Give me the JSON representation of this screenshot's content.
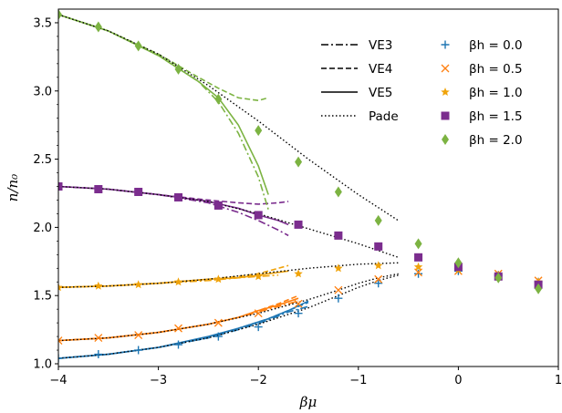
{
  "chart_data": {
    "type": "scatter",
    "title": "",
    "xlabel": "βμ",
    "ylabel": "n/n₀",
    "xlim": [
      -4,
      1
    ],
    "ylim": [
      0.98,
      3.6
    ],
    "xticks": [
      -4,
      -3,
      -2,
      -1,
      0,
      1
    ],
    "xtick_labels": [
      "−4",
      "−3",
      "−2",
      "−1",
      "0",
      "1"
    ],
    "yticks": [
      1.0,
      1.5,
      2.0,
      2.5,
      3.0,
      3.5
    ],
    "ytick_labels": [
      "1.0",
      "1.5",
      "2.0",
      "2.5",
      "3.0",
      "3.5"
    ],
    "grid": false,
    "legend_lines": [
      {
        "label": "VE3",
        "style": "dashdot"
      },
      {
        "label": "VE4",
        "style": "dashed"
      },
      {
        "label": "VE5",
        "style": "solid"
      },
      {
        "label": "Pade",
        "style": "dotted"
      }
    ],
    "series": [
      {
        "name": "βh = 0.0",
        "marker": "plus",
        "color": "#1f77b4",
        "points": [
          [
            -4,
            1.04
          ],
          [
            -3.6,
            1.07
          ],
          [
            -3.2,
            1.1
          ],
          [
            -2.8,
            1.14
          ],
          [
            -2.4,
            1.2
          ],
          [
            -2,
            1.27
          ],
          [
            -1.6,
            1.37
          ],
          [
            -1.2,
            1.48
          ],
          [
            -0.8,
            1.59
          ],
          [
            -0.4,
            1.66
          ],
          [
            0,
            1.68
          ],
          [
            0.4,
            1.65
          ],
          [
            0.8,
            1.6
          ]
        ],
        "curves": {
          "VE3": [
            [
              -4,
              1.04
            ],
            [
              -3.5,
              1.07
            ],
            [
              -3,
              1.12
            ],
            [
              -2.5,
              1.19
            ],
            [
              -2.2,
              1.25
            ],
            [
              -1.9,
              1.32
            ],
            [
              -1.7,
              1.38
            ],
            [
              -1.5,
              1.42
            ]
          ],
          "VE4": [
            [
              -4,
              1.04
            ],
            [
              -3.5,
              1.07
            ],
            [
              -3,
              1.12
            ],
            [
              -2.5,
              1.19
            ],
            [
              -2.2,
              1.26
            ],
            [
              -1.9,
              1.33
            ],
            [
              -1.7,
              1.39
            ],
            [
              -1.5,
              1.45
            ]
          ],
          "VE5": [
            [
              -4,
              1.04
            ],
            [
              -3.5,
              1.07
            ],
            [
              -3,
              1.12
            ],
            [
              -2.5,
              1.2
            ],
            [
              -2.2,
              1.26
            ],
            [
              -1.9,
              1.33
            ],
            [
              -1.7,
              1.39
            ],
            [
              -1.5,
              1.46
            ]
          ],
          "Pade": [
            [
              -4,
              1.04
            ],
            [
              -3.5,
              1.07
            ],
            [
              -3,
              1.12
            ],
            [
              -2.5,
              1.19
            ],
            [
              -2,
              1.29
            ],
            [
              -1.5,
              1.41
            ],
            [
              -1.2,
              1.5
            ],
            [
              -1,
              1.56
            ],
            [
              -0.8,
              1.61
            ],
            [
              -0.6,
              1.65
            ]
          ]
        }
      },
      {
        "name": "βh = 0.5",
        "marker": "x",
        "color": "#ff7f0e",
        "points": [
          [
            -4,
            1.17
          ],
          [
            -3.6,
            1.19
          ],
          [
            -3.2,
            1.21
          ],
          [
            -2.8,
            1.26
          ],
          [
            -2.4,
            1.3
          ],
          [
            -2,
            1.37
          ],
          [
            -1.6,
            1.44
          ],
          [
            -1.2,
            1.54
          ],
          [
            -0.8,
            1.62
          ],
          [
            -0.4,
            1.67
          ],
          [
            0,
            1.68
          ],
          [
            0.4,
            1.66
          ],
          [
            0.8,
            1.61
          ]
        ],
        "curves": {
          "VE3": [
            [
              -4,
              1.17
            ],
            [
              -3.5,
              1.19
            ],
            [
              -3,
              1.23
            ],
            [
              -2.5,
              1.29
            ],
            [
              -2.2,
              1.34
            ],
            [
              -2,
              1.38
            ],
            [
              -1.8,
              1.42
            ],
            [
              -1.6,
              1.46
            ]
          ],
          "VE4": [
            [
              -4,
              1.17
            ],
            [
              -3.5,
              1.19
            ],
            [
              -3,
              1.23
            ],
            [
              -2.5,
              1.29
            ],
            [
              -2.2,
              1.34
            ],
            [
              -2,
              1.39
            ],
            [
              -1.8,
              1.44
            ],
            [
              -1.6,
              1.5
            ]
          ],
          "VE5": [
            [
              -4,
              1.17
            ],
            [
              -3.5,
              1.19
            ],
            [
              -3,
              1.23
            ],
            [
              -2.5,
              1.29
            ],
            [
              -2.2,
              1.34
            ],
            [
              -2,
              1.39
            ],
            [
              -1.8,
              1.43
            ],
            [
              -1.6,
              1.48
            ]
          ],
          "Pade": [
            [
              -4,
              1.17
            ],
            [
              -3.5,
              1.19
            ],
            [
              -3,
              1.23
            ],
            [
              -2.5,
              1.29
            ],
            [
              -2,
              1.37
            ],
            [
              -1.5,
              1.47
            ],
            [
              -1.2,
              1.54
            ],
            [
              -1,
              1.59
            ],
            [
              -0.8,
              1.63
            ],
            [
              -0.6,
              1.66
            ]
          ]
        }
      },
      {
        "name": "βh = 1.0",
        "marker": "star",
        "color": "#f0a30a",
        "points": [
          [
            -4,
            1.56
          ],
          [
            -3.6,
            1.57
          ],
          [
            -3.2,
            1.58
          ],
          [
            -2.8,
            1.6
          ],
          [
            -2.4,
            1.62
          ],
          [
            -2,
            1.64
          ],
          [
            -1.6,
            1.66
          ],
          [
            -1.2,
            1.7
          ],
          [
            -0.8,
            1.72
          ],
          [
            -0.4,
            1.71
          ],
          [
            0,
            1.69
          ],
          [
            0.4,
            1.65
          ],
          [
            0.8,
            1.6
          ]
        ],
        "curves": {
          "VE3": [
            [
              -4,
              1.56
            ],
            [
              -3.5,
              1.57
            ],
            [
              -3,
              1.59
            ],
            [
              -2.5,
              1.61
            ],
            [
              -2.2,
              1.63
            ],
            [
              -2,
              1.64
            ],
            [
              -1.8,
              1.65
            ]
          ],
          "VE4": [
            [
              -4,
              1.56
            ],
            [
              -3.5,
              1.57
            ],
            [
              -3,
              1.59
            ],
            [
              -2.5,
              1.62
            ],
            [
              -2.2,
              1.64
            ],
            [
              -2,
              1.66
            ],
            [
              -1.8,
              1.7
            ],
            [
              -1.7,
              1.72
            ]
          ],
          "VE5": [
            [
              -4,
              1.56
            ],
            [
              -3.5,
              1.57
            ],
            [
              -3,
              1.59
            ],
            [
              -2.5,
              1.62
            ],
            [
              -2.2,
              1.63
            ],
            [
              -2,
              1.65
            ],
            [
              -1.8,
              1.67
            ],
            [
              -1.7,
              1.68
            ]
          ],
          "Pade": [
            [
              -4,
              1.56
            ],
            [
              -3.5,
              1.57
            ],
            [
              -3,
              1.59
            ],
            [
              -2.5,
              1.62
            ],
            [
              -2,
              1.66
            ],
            [
              -1.5,
              1.7
            ],
            [
              -1,
              1.73
            ],
            [
              -0.6,
              1.74
            ]
          ]
        }
      },
      {
        "name": "βh = 1.5",
        "marker": "square",
        "color": "#7b2d8e",
        "points": [
          [
            -4,
            2.3
          ],
          [
            -3.6,
            2.28
          ],
          [
            -3.2,
            2.26
          ],
          [
            -2.8,
            2.22
          ],
          [
            -2.4,
            2.16
          ],
          [
            -2,
            2.09
          ],
          [
            -1.6,
            2.02
          ],
          [
            -1.2,
            1.94
          ],
          [
            -0.8,
            1.86
          ],
          [
            -0.4,
            1.78
          ],
          [
            0,
            1.71
          ],
          [
            0.4,
            1.64
          ],
          [
            0.8,
            1.58
          ]
        ],
        "curves": {
          "VE3": [
            [
              -4,
              2.3
            ],
            [
              -3.5,
              2.28
            ],
            [
              -3,
              2.24
            ],
            [
              -2.5,
              2.18
            ],
            [
              -2.2,
              2.11
            ],
            [
              -2,
              2.05
            ],
            [
              -1.8,
              1.98
            ],
            [
              -1.7,
              1.94
            ]
          ],
          "VE4": [
            [
              -4,
              2.3
            ],
            [
              -3.5,
              2.28
            ],
            [
              -3,
              2.24
            ],
            [
              -2.5,
              2.2
            ],
            [
              -2.2,
              2.18
            ],
            [
              -2,
              2.17
            ],
            [
              -1.8,
              2.18
            ],
            [
              -1.7,
              2.19
            ]
          ],
          "VE5": [
            [
              -4,
              2.3
            ],
            [
              -3.5,
              2.28
            ],
            [
              -3,
              2.24
            ],
            [
              -2.5,
              2.19
            ],
            [
              -2.2,
              2.14
            ],
            [
              -2,
              2.09
            ],
            [
              -1.8,
              2.05
            ],
            [
              -1.7,
              2.02
            ]
          ],
          "Pade": [
            [
              -4,
              2.3
            ],
            [
              -3.5,
              2.28
            ],
            [
              -3,
              2.24
            ],
            [
              -2.5,
              2.19
            ],
            [
              -2,
              2.1
            ],
            [
              -1.5,
              1.99
            ],
            [
              -1,
              1.88
            ],
            [
              -0.6,
              1.78
            ]
          ]
        }
      },
      {
        "name": "βh = 2.0",
        "marker": "diamond",
        "color": "#7cb342",
        "points": [
          [
            -4,
            3.56
          ],
          [
            -3.6,
            3.47
          ],
          [
            -3.2,
            3.33
          ],
          [
            -2.8,
            3.16
          ],
          [
            -2.4,
            2.94
          ],
          [
            -2,
            2.71
          ],
          [
            -1.6,
            2.48
          ],
          [
            -1.2,
            2.26
          ],
          [
            -0.8,
            2.05
          ],
          [
            -0.4,
            1.88
          ],
          [
            0,
            1.74
          ],
          [
            0.4,
            1.63
          ],
          [
            0.8,
            1.55
          ]
        ],
        "curves": {
          "VE3": [
            [
              -4,
              3.56
            ],
            [
              -3.5,
              3.44
            ],
            [
              -3,
              3.26
            ],
            [
              -2.6,
              3.07
            ],
            [
              -2.4,
              2.92
            ],
            [
              -2.2,
              2.69
            ],
            [
              -2.0,
              2.37
            ],
            [
              -1.9,
              2.13
            ]
          ],
          "VE4": [
            [
              -4,
              3.56
            ],
            [
              -3.5,
              3.44
            ],
            [
              -3,
              3.27
            ],
            [
              -2.6,
              3.1
            ],
            [
              -2.4,
              3.02
            ],
            [
              -2.2,
              2.95
            ],
            [
              -2.0,
              2.93
            ],
            [
              -1.9,
              2.95
            ]
          ],
          "VE5": [
            [
              -4,
              3.56
            ],
            [
              -3.5,
              3.44
            ],
            [
              -3,
              3.26
            ],
            [
              -2.6,
              3.07
            ],
            [
              -2.4,
              2.95
            ],
            [
              -2.2,
              2.75
            ],
            [
              -2.0,
              2.45
            ],
            [
              -1.9,
              2.24
            ]
          ],
          "Pade": [
            [
              -4,
              3.56
            ],
            [
              -3.5,
              3.44
            ],
            [
              -3,
              3.27
            ],
            [
              -2.5,
              3.04
            ],
            [
              -2,
              2.78
            ],
            [
              -1.5,
              2.5
            ],
            [
              -1,
              2.24
            ],
            [
              -0.6,
              2.05
            ]
          ]
        }
      }
    ]
  }
}
